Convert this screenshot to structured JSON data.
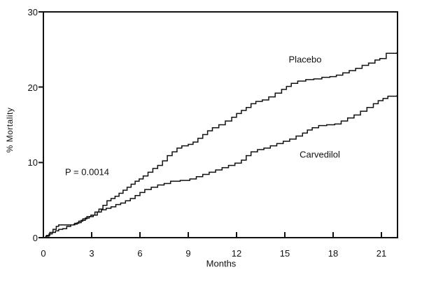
{
  "figure": {
    "background": "#ffffff",
    "line_color": "#111111"
  },
  "chart_data": {
    "type": "line",
    "subtype": "step",
    "title": "",
    "xlabel": "Months",
    "ylabel": "% Mortality",
    "xlim": [
      0,
      22
    ],
    "ylim": [
      0,
      30
    ],
    "x_ticks": [
      0,
      3,
      6,
      9,
      12,
      15,
      18,
      21
    ],
    "y_ticks": [
      0,
      10,
      20,
      30
    ],
    "grid": false,
    "legend_position": "inline-labels",
    "annotations": [
      {
        "text": "P = 0.0014",
        "x": 1.35,
        "y": 8.7
      }
    ],
    "series": [
      {
        "name": "Placebo",
        "label_x": 16.2,
        "label_y": 23.7,
        "points": [
          [
            0,
            0
          ],
          [
            0.15,
            0.2
          ],
          [
            0.35,
            0.5
          ],
          [
            0.55,
            0.7
          ],
          [
            0.75,
            0.9
          ],
          [
            0.95,
            1.1
          ],
          [
            1.2,
            1.2
          ],
          [
            1.45,
            1.5
          ],
          [
            1.7,
            1.7
          ],
          [
            1.95,
            1.9
          ],
          [
            2.2,
            2.2
          ],
          [
            2.45,
            2.5
          ],
          [
            2.7,
            2.8
          ],
          [
            2.95,
            3.0
          ],
          [
            3.2,
            3.4
          ],
          [
            3.45,
            3.8
          ],
          [
            3.7,
            4.3
          ],
          [
            3.95,
            4.9
          ],
          [
            4.2,
            5.2
          ],
          [
            4.45,
            5.5
          ],
          [
            4.7,
            5.9
          ],
          [
            4.95,
            6.3
          ],
          [
            5.2,
            6.7
          ],
          [
            5.45,
            7.1
          ],
          [
            5.7,
            7.5
          ],
          [
            5.95,
            7.8
          ],
          [
            6.2,
            8.2
          ],
          [
            6.5,
            8.7
          ],
          [
            6.8,
            9.2
          ],
          [
            7.1,
            9.6
          ],
          [
            7.4,
            10.2
          ],
          [
            7.7,
            10.9
          ],
          [
            8.0,
            11.4
          ],
          [
            8.3,
            11.9
          ],
          [
            8.6,
            12.2
          ],
          [
            9.0,
            12.4
          ],
          [
            9.3,
            12.7
          ],
          [
            9.6,
            13.2
          ],
          [
            9.9,
            13.7
          ],
          [
            10.2,
            14.2
          ],
          [
            10.5,
            14.6
          ],
          [
            10.9,
            15.0
          ],
          [
            11.3,
            15.5
          ],
          [
            11.7,
            16.0
          ],
          [
            12.0,
            16.5
          ],
          [
            12.3,
            16.9
          ],
          [
            12.6,
            17.3
          ],
          [
            12.9,
            17.8
          ],
          [
            13.2,
            18.1
          ],
          [
            13.6,
            18.3
          ],
          [
            14.0,
            18.7
          ],
          [
            14.4,
            19.2
          ],
          [
            14.8,
            19.7
          ],
          [
            15.1,
            20.1
          ],
          [
            15.4,
            20.5
          ],
          [
            15.8,
            20.8
          ],
          [
            16.3,
            21.0
          ],
          [
            16.8,
            21.1
          ],
          [
            17.3,
            21.3
          ],
          [
            17.8,
            21.4
          ],
          [
            18.2,
            21.6
          ],
          [
            18.6,
            21.9
          ],
          [
            19.0,
            22.2
          ],
          [
            19.4,
            22.5
          ],
          [
            19.8,
            22.9
          ],
          [
            20.2,
            23.2
          ],
          [
            20.6,
            23.6
          ],
          [
            20.9,
            23.8
          ],
          [
            21.3,
            24.5
          ],
          [
            21.95,
            24.6
          ]
        ]
      },
      {
        "name": "Carvedilol",
        "label_x": 17.1,
        "label_y": 11.0,
        "points": [
          [
            0,
            0
          ],
          [
            0.2,
            0.3
          ],
          [
            0.4,
            0.7
          ],
          [
            0.6,
            1.1
          ],
          [
            0.8,
            1.5
          ],
          [
            0.95,
            1.7
          ],
          [
            1.9,
            1.8
          ],
          [
            2.1,
            2.0
          ],
          [
            2.35,
            2.3
          ],
          [
            2.6,
            2.6
          ],
          [
            2.85,
            2.8
          ],
          [
            3.1,
            3.0
          ],
          [
            3.35,
            3.4
          ],
          [
            3.6,
            3.7
          ],
          [
            3.9,
            3.9
          ],
          [
            4.2,
            4.1
          ],
          [
            4.5,
            4.4
          ],
          [
            4.8,
            4.6
          ],
          [
            5.1,
            4.9
          ],
          [
            5.4,
            5.2
          ],
          [
            5.7,
            5.6
          ],
          [
            6.0,
            6.0
          ],
          [
            6.3,
            6.4
          ],
          [
            6.7,
            6.7
          ],
          [
            7.1,
            7.0
          ],
          [
            7.5,
            7.2
          ],
          [
            7.9,
            7.5
          ],
          [
            8.5,
            7.6
          ],
          [
            9.1,
            7.8
          ],
          [
            9.5,
            8.1
          ],
          [
            9.9,
            8.4
          ],
          [
            10.3,
            8.7
          ],
          [
            10.7,
            9.0
          ],
          [
            11.1,
            9.3
          ],
          [
            11.5,
            9.6
          ],
          [
            11.9,
            9.9
          ],
          [
            12.3,
            10.3
          ],
          [
            12.6,
            10.9
          ],
          [
            12.9,
            11.4
          ],
          [
            13.3,
            11.7
          ],
          [
            13.7,
            11.9
          ],
          [
            14.1,
            12.2
          ],
          [
            14.5,
            12.5
          ],
          [
            14.9,
            12.8
          ],
          [
            15.3,
            13.1
          ],
          [
            15.7,
            13.5
          ],
          [
            16.1,
            13.9
          ],
          [
            16.4,
            14.3
          ],
          [
            16.7,
            14.6
          ],
          [
            17.1,
            14.9
          ],
          [
            17.6,
            15.0
          ],
          [
            18.1,
            15.1
          ],
          [
            18.5,
            15.5
          ],
          [
            18.9,
            15.9
          ],
          [
            19.3,
            16.3
          ],
          [
            19.7,
            16.8
          ],
          [
            20.1,
            17.3
          ],
          [
            20.5,
            17.8
          ],
          [
            20.8,
            18.2
          ],
          [
            21.1,
            18.5
          ],
          [
            21.4,
            18.8
          ],
          [
            21.95,
            18.9
          ]
        ]
      }
    ]
  }
}
